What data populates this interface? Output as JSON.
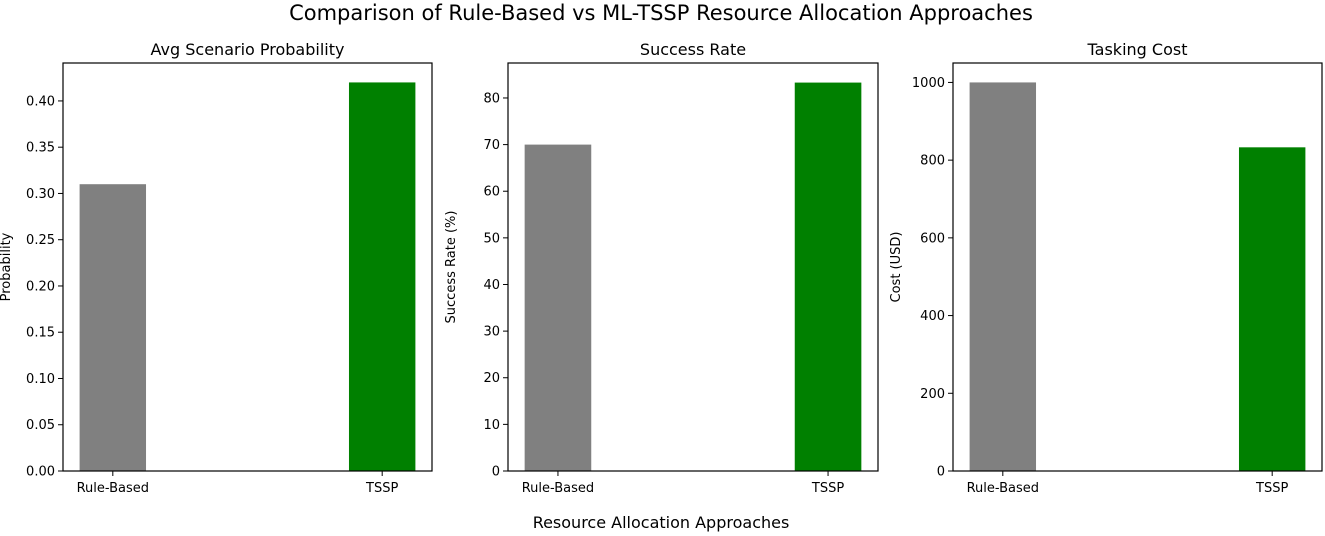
{
  "figure": {
    "title": "Comparison of Rule-Based vs ML-TSSP Resource Allocation Approaches",
    "shared_xlabel": "Resource Allocation Approaches"
  },
  "colors": {
    "rule_based": "#808080",
    "tssp": "#008000",
    "axes": "#000000",
    "background": "#ffffff"
  },
  "chart_data": [
    {
      "type": "bar",
      "title": "Avg Scenario Probability",
      "categories": [
        "Rule-Based",
        "TSSP"
      ],
      "values": [
        0.31,
        0.42
      ],
      "bar_colors": [
        "#808080",
        "#008000"
      ],
      "xlabel": "",
      "ylabel": "Probability",
      "ylim": [
        0,
        0.441
      ],
      "yticks": [
        0.0,
        0.05,
        0.1,
        0.15,
        0.2,
        0.25,
        0.3,
        0.35,
        0.4
      ],
      "ytick_labels": [
        "0.00",
        "0.05",
        "0.10",
        "0.15",
        "0.20",
        "0.25",
        "0.30",
        "0.35",
        "0.40"
      ],
      "grid": false,
      "legend": "none"
    },
    {
      "type": "bar",
      "title": "Success Rate",
      "categories": [
        "Rule-Based",
        "TSSP"
      ],
      "values": [
        70,
        83.3
      ],
      "bar_colors": [
        "#808080",
        "#008000"
      ],
      "xlabel": "",
      "ylabel": "Success Rate (%)",
      "ylim": [
        0,
        87.5
      ],
      "yticks": [
        0,
        10,
        20,
        30,
        40,
        50,
        60,
        70,
        80
      ],
      "ytick_labels": [
        "0",
        "10",
        "20",
        "30",
        "40",
        "50",
        "60",
        "70",
        "80"
      ],
      "grid": false,
      "legend": "none"
    },
    {
      "type": "bar",
      "title": "Tasking Cost",
      "categories": [
        "Rule-Based",
        "TSSP"
      ],
      "values": [
        1000,
        833
      ],
      "bar_colors": [
        "#808080",
        "#008000"
      ],
      "xlabel": "",
      "ylabel": "Cost (USD)",
      "ylim": [
        0,
        1050
      ],
      "yticks": [
        0,
        200,
        400,
        600,
        800,
        1000
      ],
      "ytick_labels": [
        "0",
        "200",
        "400",
        "600",
        "800",
        "1000"
      ],
      "grid": false,
      "legend": "none"
    }
  ]
}
